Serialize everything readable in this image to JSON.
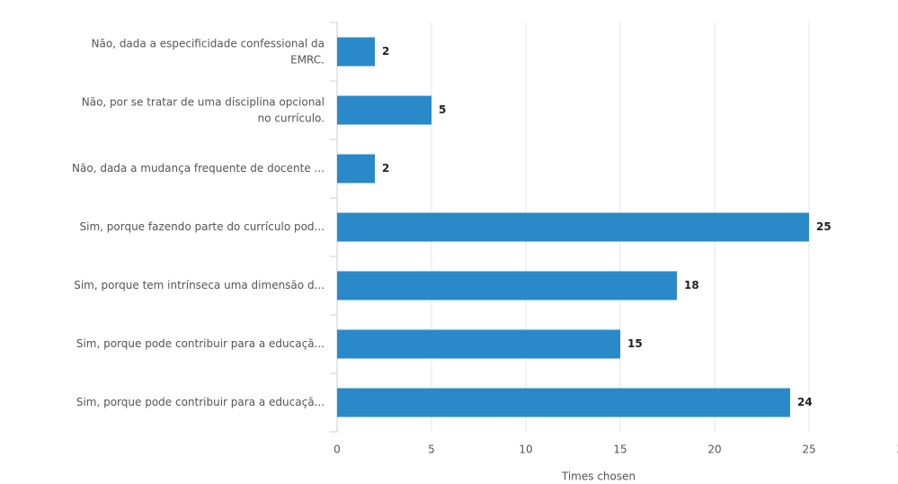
{
  "chart_data": {
    "type": "bar",
    "orientation": "horizontal",
    "categories": [
      "Não, dada a especificidade confessional da EMRC.",
      "Não, por se tratar de uma disciplina opcional no currículo.",
      "Não, dada a mudança frequente de docente ...",
      "Sim, porque fazendo parte do currículo pod...",
      "Sim, porque tem intrínseca uma dimensão d...",
      "Sim, porque pode contribuir para a educaçã...",
      "Sim, porque pode contribuir para a educaçã..."
    ],
    "values": [
      2,
      5,
      2,
      25,
      18,
      15,
      24
    ],
    "color": "#2a89c8",
    "xlim": [
      0,
      30
    ],
    "xticks": [
      0,
      5,
      10,
      15,
      20,
      25,
      30
    ],
    "grid": true,
    "xlabel": "Times chosen"
  }
}
